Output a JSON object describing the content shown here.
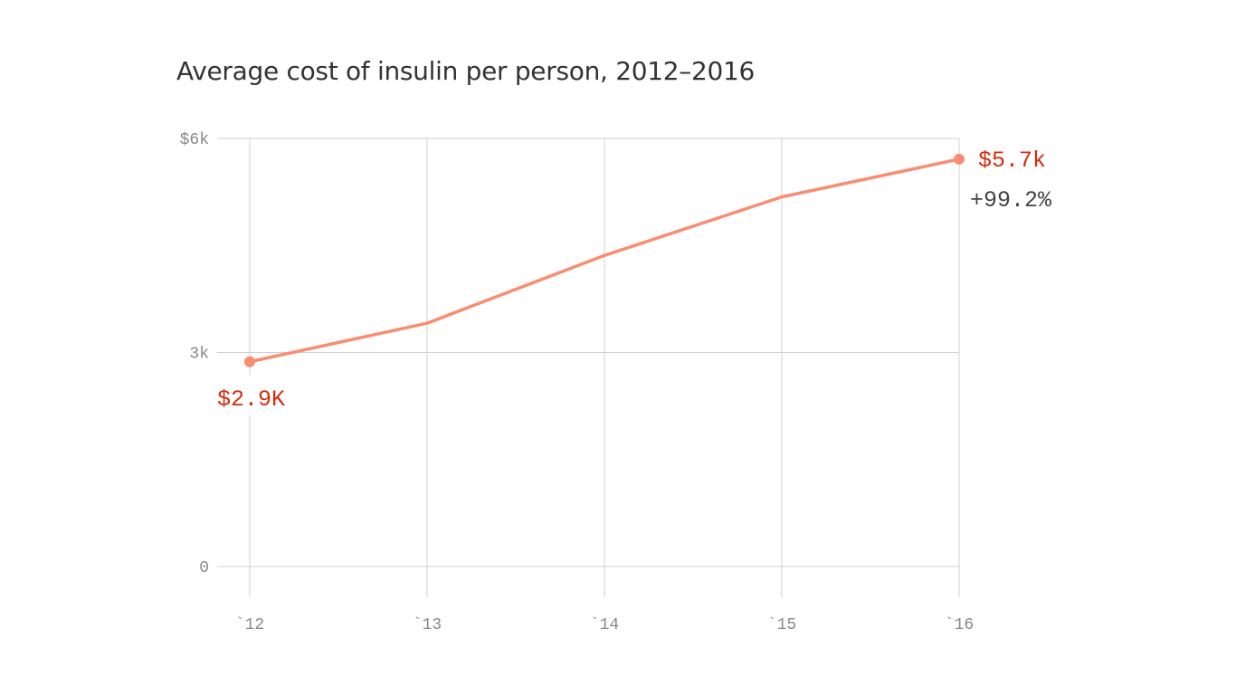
{
  "chart_data": {
    "type": "line",
    "title": "Average cost of insulin per person, 2012–2016",
    "xlabel": "",
    "ylabel": "",
    "categories": [
      "`12",
      "`13",
      "`14",
      "`15",
      "`16"
    ],
    "values": [
      2.87,
      3.41,
      4.36,
      5.18,
      5.71
    ],
    "y_unit": "thousands of dollars",
    "ylim": [
      0,
      6
    ],
    "y_ticks": [
      0,
      3,
      6
    ],
    "y_tick_labels": [
      "0",
      "3k",
      "$6k"
    ],
    "grid": true,
    "annotations": {
      "start_label": "$2.9K",
      "end_label": "$5.7k",
      "change_label": "+99.2%"
    },
    "colors": {
      "line": "#f98d72",
      "label": "#d42d0c",
      "grid": "#d0d0d0",
      "tick_text": "#888888",
      "change_text": "#444444"
    }
  }
}
